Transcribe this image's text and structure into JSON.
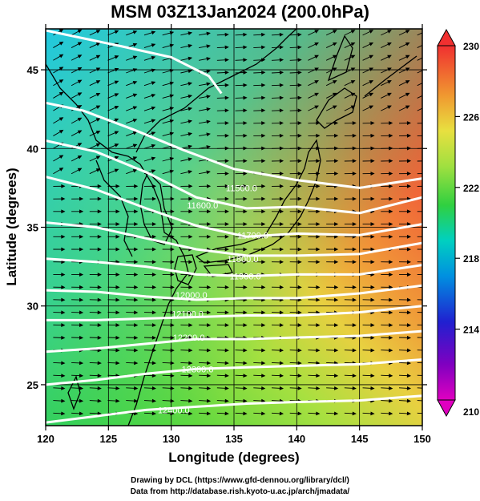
{
  "title": "MSM 03Z13Jan2024 (200.0hPa)",
  "credits": [
    "Drawing by DCL (https://www.gfd-dennou.org/library/dcl/)",
    "Data from http://database.rish.kyoto-u.ac.jp/arch/jmadata/"
  ],
  "chart_data": {
    "type": "heatmap",
    "xlabel": "Longitude (degrees)",
    "ylabel": "Latitude  (degrees)",
    "xlim": [
      120,
      150
    ],
    "ylim": [
      22.4,
      47.6
    ],
    "x_ticks": [
      120,
      125,
      130,
      135,
      140,
      145,
      150
    ],
    "y_ticks": [
      25,
      30,
      35,
      40,
      45
    ],
    "colorbar": {
      "min": 210,
      "max": 230,
      "ticks": [
        210,
        214,
        218,
        222,
        226,
        230
      ],
      "colors": [
        "#e000c0",
        "#6000c0",
        "#0020e0",
        "#00a0e0",
        "#00d0a0",
        "#40d040",
        "#a0e040",
        "#e0e040",
        "#f0a030",
        "#f05030",
        "#f03030"
      ]
    },
    "contour_labels": [
      {
        "text": "11500.0",
        "lon": 135.6,
        "lat": 37.5
      },
      {
        "text": "11600.0",
        "lon": 132.5,
        "lat": 36.4
      },
      {
        "text": "11700.0",
        "lon": 136.5,
        "lat": 34.5
      },
      {
        "text": "11800.0",
        "lon": 135.7,
        "lat": 33.0
      },
      {
        "text": "11900.0",
        "lon": 135.9,
        "lat": 31.9
      },
      {
        "text": "12000.0",
        "lon": 131.6,
        "lat": 30.7
      },
      {
        "text": "12100.0",
        "lon": 131.3,
        "lat": 29.5
      },
      {
        "text": "12200.0",
        "lon": 131.4,
        "lat": 28.0
      },
      {
        "text": "12300.0",
        "lon": 132.1,
        "lat": 26.0
      },
      {
        "text": "12400.0",
        "lon": 130.2,
        "lat": 23.4
      }
    ],
    "contours": [
      {
        "lat_at": [
          [
            120,
            47.5
          ],
          [
            126,
            46.5
          ],
          [
            130,
            45.8
          ],
          [
            133,
            44.6
          ],
          [
            134,
            43.5
          ]
        ]
      },
      {
        "lat_at": [
          [
            120,
            42.9
          ],
          [
            123,
            42.4
          ],
          [
            127,
            41.2
          ],
          [
            131,
            39.9
          ],
          [
            135,
            38.7
          ],
          [
            140,
            38.0
          ],
          [
            145,
            37.5
          ],
          [
            150,
            38.1
          ]
        ]
      },
      {
        "lat_at": [
          [
            120,
            40.5
          ],
          [
            124,
            39.8
          ],
          [
            128,
            38.5
          ],
          [
            132,
            36.9
          ],
          [
            136,
            36.2
          ],
          [
            140,
            36.3
          ],
          [
            145,
            35.9
          ],
          [
            150,
            36.9
          ]
        ]
      },
      {
        "lat_at": [
          [
            120,
            38.2
          ],
          [
            124,
            37.4
          ],
          [
            128,
            36.2
          ],
          [
            132,
            35.1
          ],
          [
            136,
            34.4
          ],
          [
            140,
            34.6
          ],
          [
            145,
            34.5
          ],
          [
            150,
            35.2
          ]
        ]
      },
      {
        "lat_at": [
          [
            120,
            35.3
          ],
          [
            124,
            35.0
          ],
          [
            128,
            34.3
          ],
          [
            132,
            33.6
          ],
          [
            136,
            33.2
          ],
          [
            140,
            33.2
          ],
          [
            145,
            33.3
          ],
          [
            150,
            34.0
          ]
        ]
      },
      {
        "lat_at": [
          [
            120,
            33.0
          ],
          [
            124,
            32.8
          ],
          [
            128,
            32.5
          ],
          [
            132,
            32.0
          ],
          [
            136,
            31.9
          ],
          [
            140,
            32.0
          ],
          [
            145,
            32.0
          ],
          [
            150,
            32.6
          ]
        ]
      },
      {
        "lat_at": [
          [
            120,
            31.0
          ],
          [
            124,
            30.9
          ],
          [
            128,
            30.6
          ],
          [
            132,
            30.4
          ],
          [
            136,
            30.5
          ],
          [
            140,
            30.5
          ],
          [
            145,
            30.8
          ],
          [
            150,
            31.3
          ]
        ]
      },
      {
        "lat_at": [
          [
            120,
            29.1
          ],
          [
            124,
            29.1
          ],
          [
            128,
            29.2
          ],
          [
            132,
            29.3
          ],
          [
            136,
            29.4
          ],
          [
            140,
            29.4
          ],
          [
            145,
            29.6
          ],
          [
            150,
            30.0
          ]
        ]
      },
      {
        "lat_at": [
          [
            120,
            27.1
          ],
          [
            124,
            27.3
          ],
          [
            128,
            27.6
          ],
          [
            132,
            27.9
          ],
          [
            136,
            27.9
          ],
          [
            140,
            28.0
          ],
          [
            145,
            28.1
          ],
          [
            150,
            28.4
          ]
        ]
      },
      {
        "lat_at": [
          [
            120,
            25.0
          ],
          [
            124,
            25.3
          ],
          [
            128,
            25.7
          ],
          [
            132,
            26.0
          ],
          [
            136,
            26.1
          ],
          [
            140,
            26.2
          ],
          [
            145,
            26.3
          ],
          [
            150,
            26.6
          ]
        ]
      },
      {
        "lat_at": [
          [
            120,
            22.6
          ],
          [
            124,
            23.0
          ],
          [
            128,
            23.4
          ],
          [
            132,
            23.6
          ],
          [
            136,
            23.8
          ],
          [
            140,
            23.9
          ],
          [
            145,
            24.0
          ],
          [
            150,
            24.3
          ]
        ]
      }
    ]
  }
}
